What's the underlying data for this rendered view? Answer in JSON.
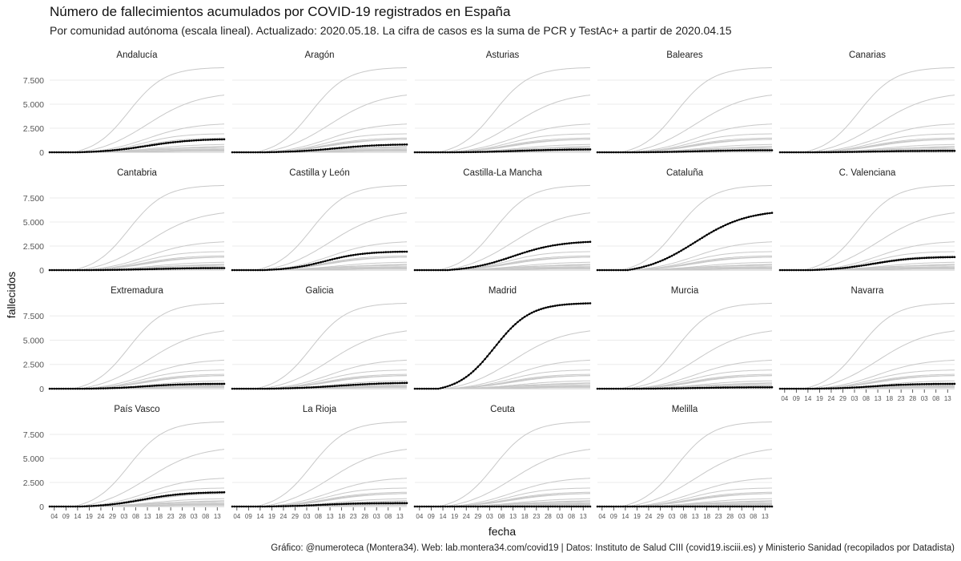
{
  "chart_data": {
    "type": "line",
    "title": "Número de fallecimientos acumulados por COVID-19 registrados en España",
    "subtitle": "Por comunidad autónoma (escala lineal). Actualizado: 2020.05.18. La cifra de casos es la suma de PCR y TestAc+ a partir de 2020.04.15",
    "caption": "Gráfico: @numeroteca (Montera34). Web: lab.montera34.com/covid19 | Datos: Instituto de Salud CIII (covid19.isciii.es) y Ministerio Sanidad (recopilados por Datadista)",
    "xlabel": "fecha",
    "ylabel": "fallecidos",
    "x_tick_labels": [
      "04",
      "09",
      "14",
      "19",
      "24",
      "29",
      "03",
      "08",
      "13",
      "18",
      "23",
      "28",
      "03",
      "08",
      "13"
    ],
    "y_tick_labels": [
      "0",
      "2.500",
      "5.000",
      "7.500"
    ],
    "y_ticks": [
      0,
      2500,
      5000,
      7500
    ],
    "ylim": [
      0,
      9000
    ],
    "x_range_days": [
      0,
      75
    ],
    "grid": true,
    "legend": "none",
    "series": [
      {
        "name": "Andalucía",
        "total": 1350,
        "start": 12,
        "mid": 42,
        "k": 0.1
      },
      {
        "name": "Aragón",
        "total": 810,
        "start": 14,
        "mid": 44,
        "k": 0.1
      },
      {
        "name": "Asturias",
        "total": 300,
        "start": 15,
        "mid": 45,
        "k": 0.1
      },
      {
        "name": "Baleares",
        "total": 210,
        "start": 14,
        "mid": 43,
        "k": 0.11
      },
      {
        "name": "Canarias",
        "total": 150,
        "start": 12,
        "mid": 40,
        "k": 0.11
      },
      {
        "name": "Cantabria",
        "total": 210,
        "start": 15,
        "mid": 44,
        "k": 0.11
      },
      {
        "name": "Castilla y León",
        "total": 1920,
        "start": 13,
        "mid": 40,
        "k": 0.12
      },
      {
        "name": "Castilla-La Mancha",
        "total": 2940,
        "start": 14,
        "mid": 42,
        "k": 0.1
      },
      {
        "name": "Cataluña",
        "total": 5950,
        "start": 13,
        "mid": 42,
        "k": 0.09
      },
      {
        "name": "C. Valenciana",
        "total": 1350,
        "start": 13,
        "mid": 40,
        "k": 0.11
      },
      {
        "name": "Extremadura",
        "total": 500,
        "start": 14,
        "mid": 41,
        "k": 0.12
      },
      {
        "name": "Galicia",
        "total": 600,
        "start": 15,
        "mid": 46,
        "k": 0.09
      },
      {
        "name": "Madrid",
        "total": 8800,
        "start": 10,
        "mid": 34,
        "k": 0.13
      },
      {
        "name": "Murcia",
        "total": 145,
        "start": 15,
        "mid": 43,
        "k": 0.11
      },
      {
        "name": "Navarra",
        "total": 500,
        "start": 14,
        "mid": 40,
        "k": 0.12
      },
      {
        "name": "País Vasco",
        "total": 1480,
        "start": 13,
        "mid": 40,
        "k": 0.11
      },
      {
        "name": "La Rioja",
        "total": 350,
        "start": 12,
        "mid": 38,
        "k": 0.12
      },
      {
        "name": "Ceuta",
        "total": 4,
        "start": 20,
        "mid": 40,
        "k": 0.15
      },
      {
        "name": "Melilla",
        "total": 2,
        "start": 22,
        "mid": 42,
        "k": 0.15
      }
    ]
  }
}
